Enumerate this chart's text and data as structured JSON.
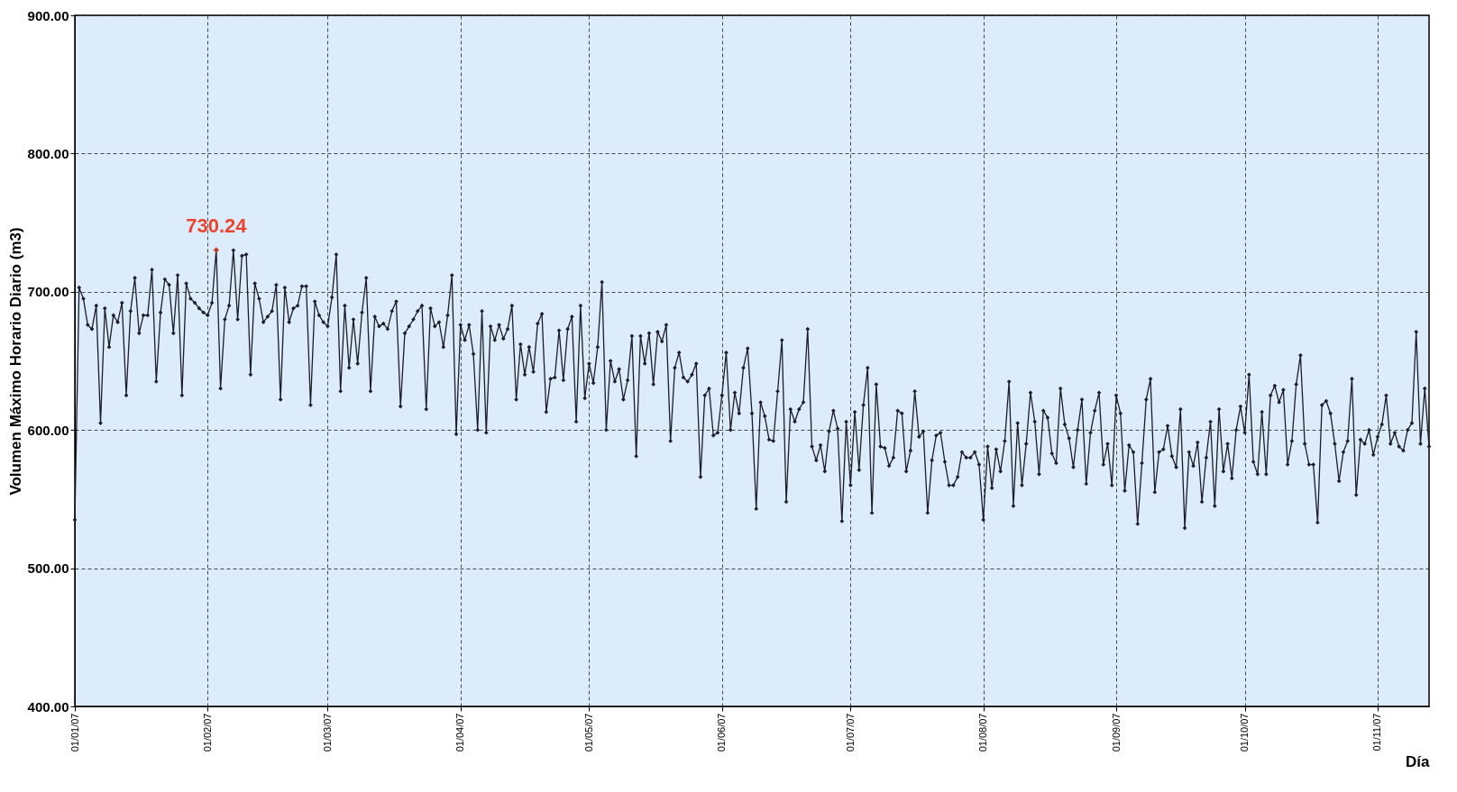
{
  "chart_data": {
    "type": "line",
    "xlabel": "Día",
    "ylabel": "Volumen Máximo Horario Diario (m3)",
    "xlim": [
      "2007-01-01",
      "2007-11-13"
    ],
    "ylim": [
      400,
      900
    ],
    "yticks": [
      {
        "value": 400,
        "label": "400.00"
      },
      {
        "value": 500,
        "label": "500.00"
      },
      {
        "value": 600,
        "label": "600.00"
      },
      {
        "value": 700,
        "label": "700.00"
      },
      {
        "value": 800,
        "label": "800.00"
      },
      {
        "value": 900,
        "label": "900.00"
      }
    ],
    "xticks": [
      {
        "value": "2007-01-01",
        "label": "01/01/07"
      },
      {
        "value": "2007-02-01",
        "label": "01/02/07"
      },
      {
        "value": "2007-03-01",
        "label": "01/03/07"
      },
      {
        "value": "2007-04-01",
        "label": "01/04/07"
      },
      {
        "value": "2007-05-01",
        "label": "01/05/07"
      },
      {
        "value": "2007-06-01",
        "label": "01/06/07"
      },
      {
        "value": "2007-07-01",
        "label": "01/07/07"
      },
      {
        "value": "2007-08-01",
        "label": "01/08/07"
      },
      {
        "value": "2007-09-01",
        "label": "01/09/07"
      },
      {
        "value": "2007-10-01",
        "label": "01/10/07"
      },
      {
        "value": "2007-11-01",
        "label": "01/11/07"
      }
    ],
    "grid": true,
    "x": [
      "2007-01-01",
      "2007-01-02",
      "2007-01-03",
      "2007-01-04",
      "2007-01-05",
      "2007-01-06",
      "2007-01-07",
      "2007-01-08",
      "2007-01-09",
      "2007-01-10",
      "2007-01-11",
      "2007-01-12",
      "2007-01-13",
      "2007-01-14",
      "2007-01-15",
      "2007-01-16",
      "2007-01-17",
      "2007-01-18",
      "2007-01-19",
      "2007-01-20",
      "2007-01-21",
      "2007-01-22",
      "2007-01-23",
      "2007-01-24",
      "2007-01-25",
      "2007-01-26",
      "2007-01-27",
      "2007-01-28",
      "2007-01-29",
      "2007-01-30",
      "2007-01-31",
      "2007-02-01",
      "2007-02-02",
      "2007-02-03",
      "2007-02-04",
      "2007-02-05",
      "2007-02-06",
      "2007-02-07",
      "2007-02-08",
      "2007-02-09",
      "2007-02-10",
      "2007-02-11",
      "2007-02-12",
      "2007-02-13",
      "2007-02-14",
      "2007-02-15",
      "2007-02-16",
      "2007-02-17",
      "2007-02-18",
      "2007-02-19",
      "2007-02-20",
      "2007-02-21",
      "2007-02-22",
      "2007-02-23",
      "2007-02-24",
      "2007-02-25",
      "2007-02-26",
      "2007-02-27",
      "2007-02-28",
      "2007-03-01",
      "2007-03-02",
      "2007-03-03",
      "2007-03-04",
      "2007-03-05",
      "2007-03-06",
      "2007-03-07",
      "2007-03-08",
      "2007-03-09",
      "2007-03-10",
      "2007-03-11",
      "2007-03-12",
      "2007-03-13",
      "2007-03-14",
      "2007-03-15",
      "2007-03-16",
      "2007-03-17",
      "2007-03-18",
      "2007-03-19",
      "2007-03-20",
      "2007-03-21",
      "2007-03-22",
      "2007-03-23",
      "2007-03-24",
      "2007-03-25",
      "2007-03-26",
      "2007-03-27",
      "2007-03-28",
      "2007-03-29",
      "2007-03-30",
      "2007-03-31",
      "2007-04-01",
      "2007-04-02",
      "2007-04-03",
      "2007-04-04",
      "2007-04-05",
      "2007-04-06",
      "2007-04-07",
      "2007-04-08",
      "2007-04-09",
      "2007-04-10",
      "2007-04-11",
      "2007-04-12",
      "2007-04-13",
      "2007-04-14",
      "2007-04-15",
      "2007-04-16",
      "2007-04-17",
      "2007-04-18",
      "2007-04-19",
      "2007-04-20",
      "2007-04-21",
      "2007-04-22",
      "2007-04-23",
      "2007-04-24",
      "2007-04-25",
      "2007-04-26",
      "2007-04-27",
      "2007-04-28",
      "2007-04-29",
      "2007-04-30",
      "2007-05-01",
      "2007-05-02",
      "2007-05-03",
      "2007-05-04",
      "2007-05-05",
      "2007-05-06",
      "2007-05-07",
      "2007-05-08",
      "2007-05-09",
      "2007-05-10",
      "2007-05-11",
      "2007-05-12",
      "2007-05-13",
      "2007-05-14",
      "2007-05-15",
      "2007-05-16",
      "2007-05-17",
      "2007-05-18",
      "2007-05-19",
      "2007-05-20",
      "2007-05-21",
      "2007-05-22",
      "2007-05-23",
      "2007-05-24",
      "2007-05-25",
      "2007-05-26",
      "2007-05-27",
      "2007-05-28",
      "2007-05-29",
      "2007-05-30",
      "2007-05-31",
      "2007-06-01",
      "2007-06-02",
      "2007-06-03",
      "2007-06-04",
      "2007-06-05",
      "2007-06-06",
      "2007-06-07",
      "2007-06-08",
      "2007-06-09",
      "2007-06-10",
      "2007-06-11",
      "2007-06-12",
      "2007-06-13",
      "2007-06-14",
      "2007-06-15",
      "2007-06-16",
      "2007-06-17",
      "2007-06-18",
      "2007-06-19",
      "2007-06-20",
      "2007-06-21",
      "2007-06-22",
      "2007-06-23",
      "2007-06-24",
      "2007-06-25",
      "2007-06-26",
      "2007-06-27",
      "2007-06-28",
      "2007-06-29",
      "2007-06-30",
      "2007-07-01",
      "2007-07-02",
      "2007-07-03",
      "2007-07-04",
      "2007-07-05",
      "2007-07-06",
      "2007-07-07",
      "2007-07-08",
      "2007-07-09",
      "2007-07-10",
      "2007-07-11",
      "2007-07-12",
      "2007-07-13",
      "2007-07-14",
      "2007-07-15",
      "2007-07-16",
      "2007-07-17",
      "2007-07-18",
      "2007-07-19",
      "2007-07-20",
      "2007-07-21",
      "2007-07-22",
      "2007-07-23",
      "2007-07-24",
      "2007-07-25",
      "2007-07-26",
      "2007-07-27",
      "2007-07-28",
      "2007-07-29",
      "2007-07-30",
      "2007-07-31",
      "2007-08-01",
      "2007-08-02",
      "2007-08-03",
      "2007-08-04",
      "2007-08-05",
      "2007-08-06",
      "2007-08-07",
      "2007-08-08",
      "2007-08-09",
      "2007-08-10",
      "2007-08-11",
      "2007-08-12",
      "2007-08-13",
      "2007-08-14",
      "2007-08-15",
      "2007-08-16",
      "2007-08-17",
      "2007-08-18",
      "2007-08-19",
      "2007-08-20",
      "2007-08-21",
      "2007-08-22",
      "2007-08-23",
      "2007-08-24",
      "2007-08-25",
      "2007-08-26",
      "2007-08-27",
      "2007-08-28",
      "2007-08-29",
      "2007-08-30",
      "2007-08-31",
      "2007-09-01",
      "2007-09-02",
      "2007-09-03",
      "2007-09-04",
      "2007-09-05",
      "2007-09-06",
      "2007-09-07",
      "2007-09-08",
      "2007-09-09",
      "2007-09-10",
      "2007-09-11",
      "2007-09-12",
      "2007-09-13",
      "2007-09-14",
      "2007-09-15",
      "2007-09-16",
      "2007-09-17",
      "2007-09-18",
      "2007-09-19",
      "2007-09-20",
      "2007-09-21",
      "2007-09-22",
      "2007-09-23",
      "2007-09-24",
      "2007-09-25",
      "2007-09-26",
      "2007-09-27",
      "2007-09-28",
      "2007-09-29",
      "2007-09-30",
      "2007-10-01",
      "2007-10-02",
      "2007-10-03",
      "2007-10-04",
      "2007-10-05",
      "2007-10-06",
      "2007-10-07",
      "2007-10-08",
      "2007-10-09",
      "2007-10-10",
      "2007-10-11",
      "2007-10-12",
      "2007-10-13",
      "2007-10-14",
      "2007-10-15",
      "2007-10-16",
      "2007-10-17",
      "2007-10-18",
      "2007-10-19",
      "2007-10-20",
      "2007-10-21",
      "2007-10-22",
      "2007-10-23",
      "2007-10-24",
      "2007-10-25",
      "2007-10-26",
      "2007-10-27",
      "2007-10-28",
      "2007-10-29",
      "2007-10-30",
      "2007-10-31",
      "2007-11-01",
      "2007-11-02",
      "2007-11-03",
      "2007-11-04",
      "2007-11-05",
      "2007-11-06",
      "2007-11-07",
      "2007-11-08",
      "2007-11-09",
      "2007-11-10",
      "2007-11-11",
      "2007-11-12",
      "2007-11-13"
    ],
    "marker": "diamond",
    "line_style": "solid",
    "annotations": [
      {
        "text": "730.24",
        "x": "2007-02-03",
        "y": 730.24
      }
    ],
    "series": [
      {
        "color": "#1c1c2a",
        "values": [
          535,
          703,
          695,
          676,
          673,
          690,
          605,
          688,
          660,
          683,
          678,
          692,
          625,
          686,
          710,
          670,
          683,
          683,
          716,
          635,
          685,
          709,
          705,
          670,
          712,
          625,
          706,
          695,
          692,
          688,
          685,
          683,
          692,
          730.24,
          630,
          680,
          690,
          730,
          680,
          726,
          727,
          640,
          706,
          695,
          678,
          682,
          686,
          705,
          622,
          703,
          678,
          688,
          690,
          704,
          704,
          618,
          693,
          683,
          678,
          675,
          696,
          727,
          628,
          690,
          645,
          680,
          648,
          685,
          710,
          628,
          682,
          675,
          677,
          673,
          686,
          693,
          617,
          670,
          675,
          680,
          686,
          690,
          615,
          688,
          675,
          678,
          660,
          683,
          712,
          597,
          676,
          665,
          676,
          655,
          600,
          686,
          598,
          675,
          665,
          676,
          666,
          673,
          690,
          622,
          662,
          640,
          660,
          642,
          677,
          684,
          613,
          637,
          638,
          672,
          636,
          673,
          682,
          606,
          690,
          623,
          648,
          634,
          660,
          707,
          600,
          650,
          635,
          644,
          622,
          636,
          668,
          581,
          668,
          648,
          670,
          633,
          671,
          664,
          676,
          592,
          645,
          656,
          638,
          635,
          640,
          648,
          566,
          625,
          630,
          596,
          598,
          625,
          656,
          600,
          627,
          612,
          645,
          659,
          612,
          543,
          620,
          610,
          593,
          592,
          628,
          665,
          548,
          615,
          606,
          615,
          620,
          673,
          588,
          578,
          589,
          570,
          599,
          614,
          601,
          534,
          606,
          560,
          613,
          571,
          618,
          645,
          540,
          633,
          588,
          587,
          574,
          580,
          614,
          612,
          570,
          585,
          628,
          595,
          599,
          540,
          578,
          596,
          598,
          577,
          560,
          560,
          566,
          584,
          580,
          580,
          584,
          575,
          535,
          588,
          558,
          586,
          570,
          592,
          635,
          545,
          605,
          560,
          590,
          627,
          606,
          568,
          614,
          609,
          583,
          576,
          630,
          604,
          594,
          573,
          600,
          622,
          561,
          598,
          614,
          627,
          575,
          590,
          560,
          625,
          612,
          556,
          589,
          584,
          532,
          576,
          622,
          637,
          555,
          584,
          586,
          603,
          581,
          573,
          615,
          529,
          584,
          574,
          591,
          548,
          580,
          606,
          545,
          615,
          570,
          590,
          565,
          600,
          617,
          598,
          640,
          577,
          568,
          613,
          568,
          625,
          632,
          620,
          629,
          575,
          592,
          633,
          654,
          590,
          575,
          575,
          533,
          618,
          621,
          612,
          590,
          563,
          584,
          592,
          637,
          553,
          593,
          590,
          600,
          582,
          595,
          604,
          625,
          590,
          598,
          588,
          585,
          600,
          605,
          671,
          590,
          630,
          588
        ]
      }
    ]
  }
}
